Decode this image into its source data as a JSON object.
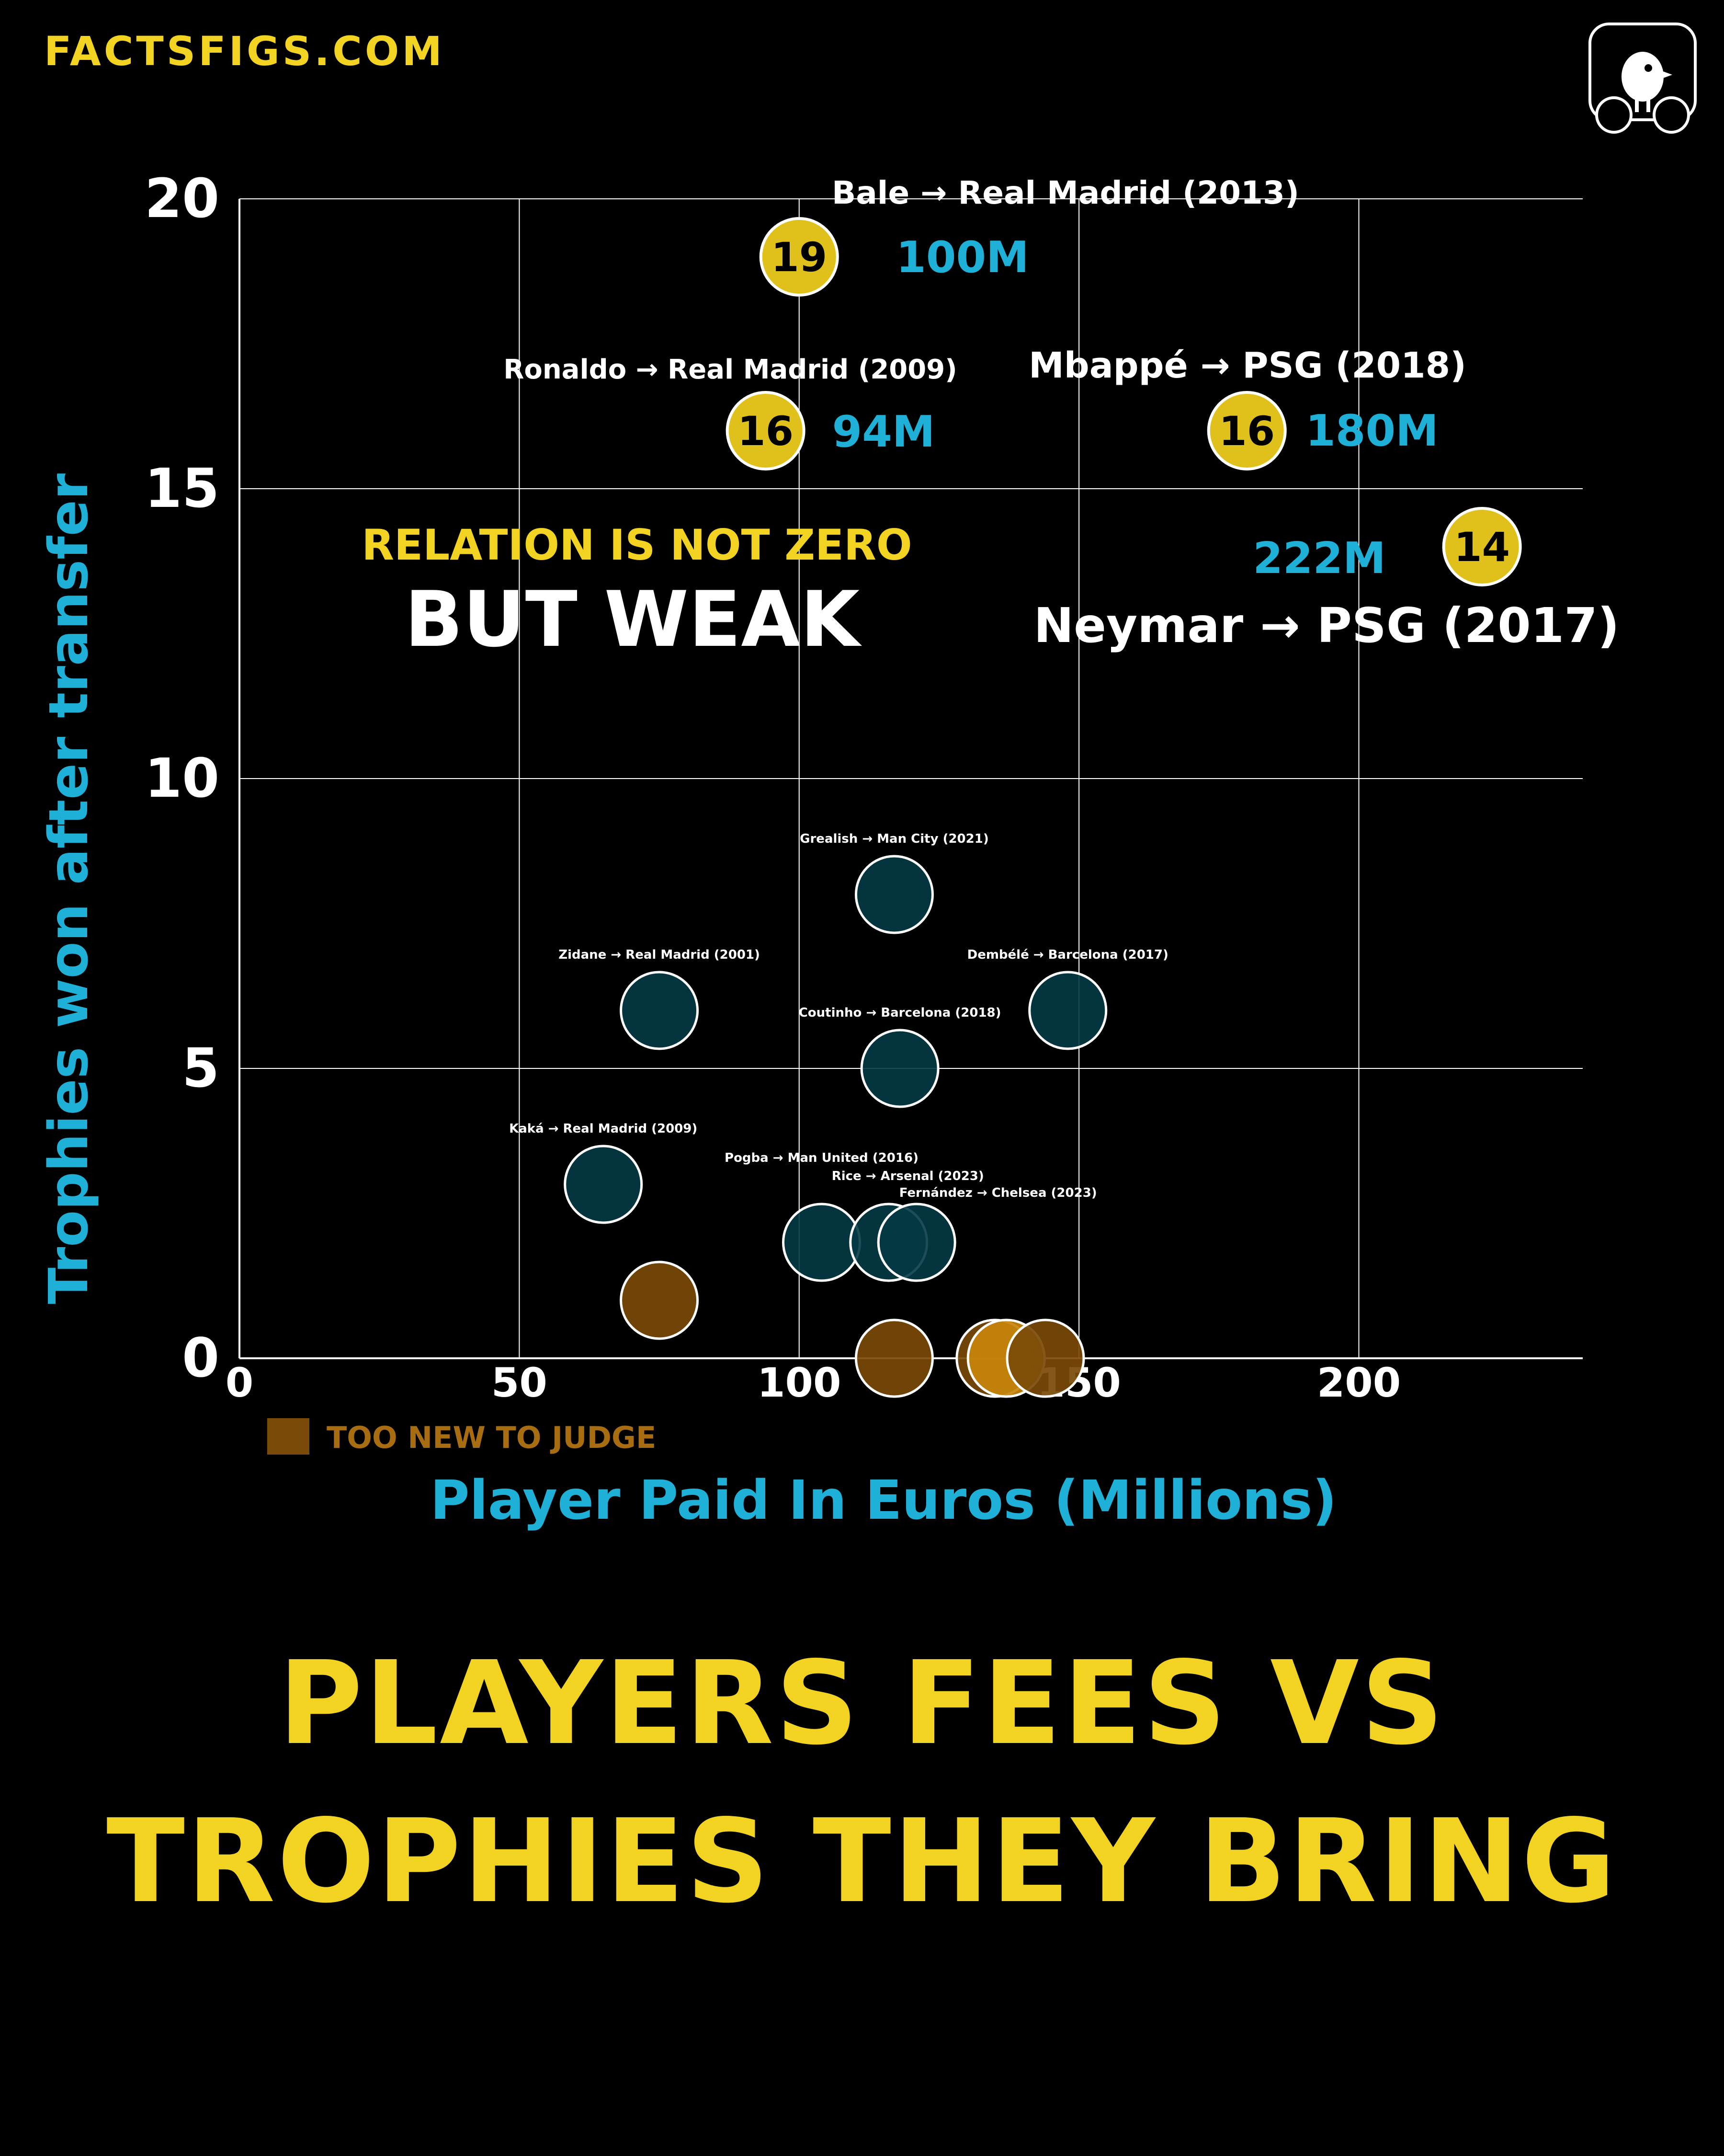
{
  "brand": "FACTSFIGS.COM",
  "title": "PLAYERS FEES VS TROPHIES THEY BRING",
  "annotation": {
    "line1": "RELATION IS NOT ZERO",
    "line2": "BUT WEAK"
  },
  "colors": {
    "background": "#000000",
    "accent_yellow": "#f2d321",
    "accent_cyan": "#1fb0d8",
    "highlight_fill": "#e0c01a",
    "regular_fill": "#043a44",
    "new_fill": "#7a4a08",
    "grid": "#ffffff"
  },
  "chart_data": {
    "type": "scatter",
    "xlabel": "Player Paid In Euros (Millions)",
    "ylabel": "Trophies won after transfer",
    "xlim": [
      0,
      240
    ],
    "ylim": [
      0,
      20
    ],
    "xticks": [
      0,
      50,
      100,
      150,
      200
    ],
    "yticks": [
      0,
      5,
      10,
      15,
      20
    ],
    "grid": true,
    "legend": {
      "label": "TOO NEW TO JUDGE",
      "position": "bottom-left",
      "color": "#7a4a08"
    },
    "points": [
      {
        "label": "Bale → Real Madrid (2013)",
        "fee": 100,
        "trophies": 19,
        "group": "highlight",
        "fee_label": "100M"
      },
      {
        "label": "Ronaldo → Real Madrid (2009)",
        "fee": 94,
        "trophies": 16,
        "group": "highlight",
        "fee_label": "94M"
      },
      {
        "label": "Mbappé → PSG (2018)",
        "fee": 180,
        "trophies": 16,
        "group": "highlight",
        "fee_label": "180M"
      },
      {
        "label": "Neymar → PSG (2017)",
        "fee": 222,
        "trophies": 14,
        "group": "highlight",
        "fee_label": "222M"
      },
      {
        "label": "Grealish → Man City (2021)",
        "fee": 117,
        "trophies": 8,
        "group": "regular"
      },
      {
        "label": "Zidane → Real Madrid (2001)",
        "fee": 75,
        "trophies": 6,
        "group": "regular"
      },
      {
        "label": "Dembélé → Barcelona (2017)",
        "fee": 148,
        "trophies": 6,
        "group": "regular"
      },
      {
        "label": "Coutinho → Barcelona (2018)",
        "fee": 118,
        "trophies": 5,
        "group": "regular"
      },
      {
        "label": "Kaká → Real Madrid (2009)",
        "fee": 65,
        "trophies": 3,
        "group": "regular"
      },
      {
        "label": "Pogba → Man United (2016)",
        "fee": 104,
        "trophies": 2,
        "group": "regular"
      },
      {
        "label": "Rice → Arsenal (2023)",
        "fee": 116,
        "trophies": 2,
        "group": "regular"
      },
      {
        "label": "Fernández → Chelsea (2023)",
        "fee": 121,
        "trophies": 2,
        "group": "regular"
      },
      {
        "label": "",
        "fee": 75,
        "trophies": 1,
        "group": "new"
      },
      {
        "label": "",
        "fee": 117,
        "trophies": 0,
        "group": "new"
      },
      {
        "label": "",
        "fee": 135,
        "trophies": 0,
        "group": "new"
      },
      {
        "label": "",
        "fee": 137,
        "trophies": 0,
        "group": "new"
      },
      {
        "label": "",
        "fee": 144,
        "trophies": 0,
        "group": "new"
      }
    ]
  }
}
